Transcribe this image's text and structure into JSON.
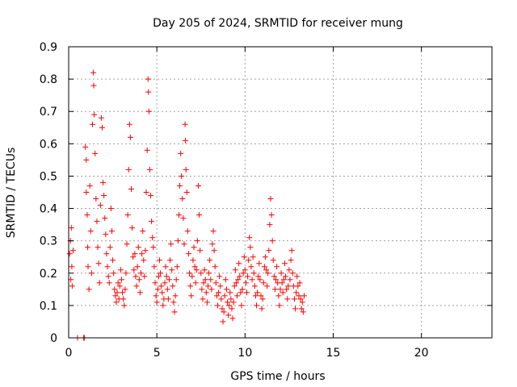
{
  "chart_data": {
    "type": "scatter",
    "title": "Day 205 of 2024, SRMTID for receiver mung",
    "xlabel": "GPS time / hours",
    "ylabel": "SRMTID / TECUs",
    "xlim": [
      0,
      24
    ],
    "ylim": [
      0,
      0.9
    ],
    "xticks": [
      0,
      5,
      10,
      15,
      20
    ],
    "xtick_labels": [
      "0",
      "5",
      "10",
      "15",
      "20"
    ],
    "yticks": [
      0,
      0.1,
      0.2,
      0.3,
      0.4,
      0.5,
      0.6,
      0.7,
      0.8,
      0.9
    ],
    "ytick_labels": [
      "0",
      "0.1",
      "0.2",
      "0.3",
      "0.4",
      "0.5",
      "0.6",
      "0.7",
      "0.8",
      "0.9"
    ],
    "grid": true,
    "marker": "+",
    "marker_color": "#ff0000",
    "series": [
      {
        "name": "SRMTID",
        "points": [
          [
            0.05,
            0.26
          ],
          [
            0.1,
            0.3
          ],
          [
            0.12,
            0.18
          ],
          [
            0.15,
            0.34
          ],
          [
            0.18,
            0.22
          ],
          [
            0.2,
            0.16
          ],
          [
            0.25,
            0.27
          ],
          [
            0.5,
            0.0
          ],
          [
            0.85,
            0.0
          ],
          [
            0.9,
            0.0
          ],
          [
            0.95,
            0.59
          ],
          [
            1.0,
            0.55
          ],
          [
            1.0,
            0.45
          ],
          [
            1.05,
            0.38
          ],
          [
            1.08,
            0.28
          ],
          [
            1.1,
            0.22
          ],
          [
            1.15,
            0.15
          ],
          [
            1.2,
            0.47
          ],
          [
            1.25,
            0.33
          ],
          [
            1.3,
            0.2
          ],
          [
            1.35,
            0.66
          ],
          [
            1.4,
            0.82
          ],
          [
            1.42,
            0.78
          ],
          [
            1.45,
            0.69
          ],
          [
            1.5,
            0.57
          ],
          [
            1.55,
            0.43
          ],
          [
            1.6,
            0.36
          ],
          [
            1.65,
            0.28
          ],
          [
            1.7,
            0.23
          ],
          [
            1.75,
            0.17
          ],
          [
            1.8,
            0.41
          ],
          [
            1.85,
            0.68
          ],
          [
            1.9,
            0.65
          ],
          [
            1.95,
            0.48
          ],
          [
            2.0,
            0.44
          ],
          [
            2.05,
            0.37
          ],
          [
            2.1,
            0.32
          ],
          [
            2.15,
            0.26
          ],
          [
            2.2,
            0.22
          ],
          [
            2.25,
            0.19
          ],
          [
            2.3,
            0.17
          ],
          [
            2.35,
            0.28
          ],
          [
            2.4,
            0.4
          ],
          [
            2.45,
            0.33
          ],
          [
            2.5,
            0.24
          ],
          [
            2.55,
            0.2
          ],
          [
            2.6,
            0.15
          ],
          [
            2.65,
            0.13
          ],
          [
            2.7,
            0.11
          ],
          [
            2.75,
            0.14
          ],
          [
            2.8,
            0.17
          ],
          [
            2.85,
            0.12
          ],
          [
            2.9,
            0.16
          ],
          [
            2.95,
            0.21
          ],
          [
            3.0,
            0.18
          ],
          [
            3.05,
            0.14
          ],
          [
            3.1,
            0.12
          ],
          [
            3.15,
            0.1
          ],
          [
            3.2,
            0.15
          ],
          [
            3.25,
            0.2
          ],
          [
            3.3,
            0.29
          ],
          [
            3.35,
            0.38
          ],
          [
            3.4,
            0.52
          ],
          [
            3.45,
            0.66
          ],
          [
            3.5,
            0.62
          ],
          [
            3.55,
            0.46
          ],
          [
            3.6,
            0.34
          ],
          [
            3.65,
            0.25
          ],
          [
            3.7,
            0.21
          ],
          [
            3.75,
            0.26
          ],
          [
            3.8,
            0.19
          ],
          [
            3.85,
            0.16
          ],
          [
            3.9,
            0.22
          ],
          [
            3.95,
            0.28
          ],
          [
            4.0,
            0.18
          ],
          [
            4.05,
            0.14
          ],
          [
            4.1,
            0.2
          ],
          [
            4.15,
            0.26
          ],
          [
            4.2,
            0.33
          ],
          [
            4.25,
            0.24
          ],
          [
            4.3,
            0.19
          ],
          [
            4.35,
            0.27
          ],
          [
            4.4,
            0.45
          ],
          [
            4.45,
            0.58
          ],
          [
            4.5,
            0.8
          ],
          [
            4.52,
            0.76
          ],
          [
            4.55,
            0.7
          ],
          [
            4.6,
            0.52
          ],
          [
            4.65,
            0.44
          ],
          [
            4.7,
            0.36
          ],
          [
            4.75,
            0.31
          ],
          [
            4.8,
            0.28
          ],
          [
            4.85,
            0.22
          ],
          [
            4.9,
            0.17
          ],
          [
            4.95,
            0.13
          ],
          [
            5.0,
            0.11
          ],
          [
            5.05,
            0.15
          ],
          [
            5.1,
            0.19
          ],
          [
            5.15,
            0.24
          ],
          [
            5.2,
            0.2
          ],
          [
            5.25,
            0.16
          ],
          [
            5.3,
            0.14
          ],
          [
            5.35,
            0.1
          ],
          [
            5.4,
            0.12
          ],
          [
            5.45,
            0.17
          ],
          [
            5.5,
            0.22
          ],
          [
            5.55,
            0.19
          ],
          [
            5.6,
            0.15
          ],
          [
            5.65,
            0.12
          ],
          [
            5.7,
            0.18
          ],
          [
            5.75,
            0.24
          ],
          [
            5.8,
            0.29
          ],
          [
            5.85,
            0.21
          ],
          [
            5.9,
            0.16
          ],
          [
            5.95,
            0.11
          ],
          [
            6.0,
            0.08
          ],
          [
            6.05,
            0.13
          ],
          [
            6.1,
            0.18
          ],
          [
            6.15,
            0.22
          ],
          [
            6.2,
            0.3
          ],
          [
            6.25,
            0.38
          ],
          [
            6.3,
            0.47
          ],
          [
            6.35,
            0.57
          ],
          [
            6.4,
            0.5
          ],
          [
            6.45,
            0.43
          ],
          [
            6.5,
            0.37
          ],
          [
            6.55,
            0.29
          ],
          [
            6.6,
            0.66
          ],
          [
            6.62,
            0.61
          ],
          [
            6.65,
            0.52
          ],
          [
            6.7,
            0.45
          ],
          [
            6.75,
            0.33
          ],
          [
            6.8,
            0.26
          ],
          [
            6.85,
            0.2
          ],
          [
            6.9,
            0.16
          ],
          [
            6.95,
            0.13
          ],
          [
            7.0,
            0.19
          ],
          [
            7.05,
            0.24
          ],
          [
            7.1,
            0.28
          ],
          [
            7.15,
            0.22
          ],
          [
            7.2,
            0.17
          ],
          [
            7.25,
            0.21
          ],
          [
            7.3,
            0.3
          ],
          [
            7.35,
            0.47
          ],
          [
            7.4,
            0.38
          ],
          [
            7.45,
            0.27
          ],
          [
            7.5,
            0.2
          ],
          [
            7.55,
            0.15
          ],
          [
            7.6,
            0.12
          ],
          [
            7.65,
            0.17
          ],
          [
            7.7,
            0.21
          ],
          [
            7.75,
            0.18
          ],
          [
            7.8,
            0.14
          ],
          [
            7.85,
            0.11
          ],
          [
            7.9,
            0.16
          ],
          [
            7.95,
            0.2
          ],
          [
            8.0,
            0.24
          ],
          [
            8.05,
            0.18
          ],
          [
            8.1,
            0.15
          ],
          [
            8.15,
            0.29
          ],
          [
            8.2,
            0.33
          ],
          [
            8.25,
            0.27
          ],
          [
            8.3,
            0.22
          ],
          [
            8.35,
            0.17
          ],
          [
            8.4,
            0.13
          ],
          [
            8.45,
            0.1
          ],
          [
            8.5,
            0.14
          ],
          [
            8.55,
            0.19
          ],
          [
            8.6,
            0.16
          ],
          [
            8.65,
            0.12
          ],
          [
            8.7,
            0.09
          ],
          [
            8.75,
            0.05
          ],
          [
            8.8,
            0.08
          ],
          [
            8.85,
            0.13
          ],
          [
            8.9,
            0.18
          ],
          [
            8.95,
            0.15
          ],
          [
            9.0,
            0.11
          ],
          [
            9.05,
            0.07
          ],
          [
            9.1,
            0.1
          ],
          [
            9.15,
            0.14
          ],
          [
            9.2,
            0.12
          ],
          [
            9.25,
            0.09
          ],
          [
            9.3,
            0.06
          ],
          [
            9.35,
            0.11
          ],
          [
            9.4,
            0.16
          ],
          [
            9.45,
            0.21
          ],
          [
            9.5,
            0.17
          ],
          [
            9.55,
            0.13
          ],
          [
            9.6,
            0.18
          ],
          [
            9.65,
            0.23
          ],
          [
            9.7,
            0.19
          ],
          [
            9.75,
            0.14
          ],
          [
            9.8,
            0.1
          ],
          [
            9.85,
            0.15
          ],
          [
            9.9,
            0.2
          ],
          [
            9.95,
            0.25
          ],
          [
            10.0,
            0.21
          ],
          [
            10.05,
            0.17
          ],
          [
            10.1,
            0.14
          ],
          [
            10.15,
            0.19
          ],
          [
            10.2,
            0.24
          ],
          [
            10.25,
            0.31
          ],
          [
            10.3,
            0.28
          ],
          [
            10.35,
            0.22
          ],
          [
            10.4,
            0.18
          ],
          [
            10.45,
            0.25
          ],
          [
            10.5,
            0.2
          ],
          [
            10.55,
            0.16
          ],
          [
            10.6,
            0.13
          ],
          [
            10.65,
            0.1
          ],
          [
            10.7,
            0.14
          ],
          [
            10.75,
            0.19
          ],
          [
            10.8,
            0.23
          ],
          [
            10.85,
            0.18
          ],
          [
            10.9,
            0.13
          ],
          [
            10.95,
            0.09
          ],
          [
            11.0,
            0.12
          ],
          [
            11.05,
            0.17
          ],
          [
            11.1,
            0.22
          ],
          [
            11.15,
            0.25
          ],
          [
            11.2,
            0.21
          ],
          [
            11.25,
            0.16
          ],
          [
            11.3,
            0.2
          ],
          [
            11.35,
            0.27
          ],
          [
            11.4,
            0.35
          ],
          [
            11.45,
            0.43
          ],
          [
            11.5,
            0.38
          ],
          [
            11.55,
            0.3
          ],
          [
            11.6,
            0.24
          ],
          [
            11.65,
            0.19
          ],
          [
            11.7,
            0.15
          ],
          [
            11.75,
            0.18
          ],
          [
            11.8,
            0.22
          ],
          [
            11.85,
            0.17
          ],
          [
            11.9,
            0.13
          ],
          [
            11.95,
            0.1
          ],
          [
            12.0,
            0.15
          ],
          [
            12.05,
            0.2
          ],
          [
            12.1,
            0.17
          ],
          [
            12.15,
            0.14
          ],
          [
            12.2,
            0.18
          ],
          [
            12.25,
            0.23
          ],
          [
            12.3,
            0.19
          ],
          [
            12.35,
            0.15
          ],
          [
            12.4,
            0.12
          ],
          [
            12.45,
            0.16
          ],
          [
            12.5,
            0.21
          ],
          [
            12.55,
            0.18
          ],
          [
            12.6,
            0.24
          ],
          [
            12.65,
            0.27
          ],
          [
            12.7,
            0.2
          ],
          [
            12.75,
            0.16
          ],
          [
            12.8,
            0.12
          ],
          [
            12.85,
            0.09
          ],
          [
            12.9,
            0.14
          ],
          [
            12.95,
            0.19
          ],
          [
            13.0,
            0.16
          ],
          [
            13.05,
            0.13
          ],
          [
            13.1,
            0.17
          ],
          [
            13.15,
            0.12
          ],
          [
            13.2,
            0.09
          ],
          [
            13.25,
            0.11
          ],
          [
            13.3,
            0.08
          ],
          [
            13.35,
            0.13
          ]
        ]
      }
    ]
  }
}
